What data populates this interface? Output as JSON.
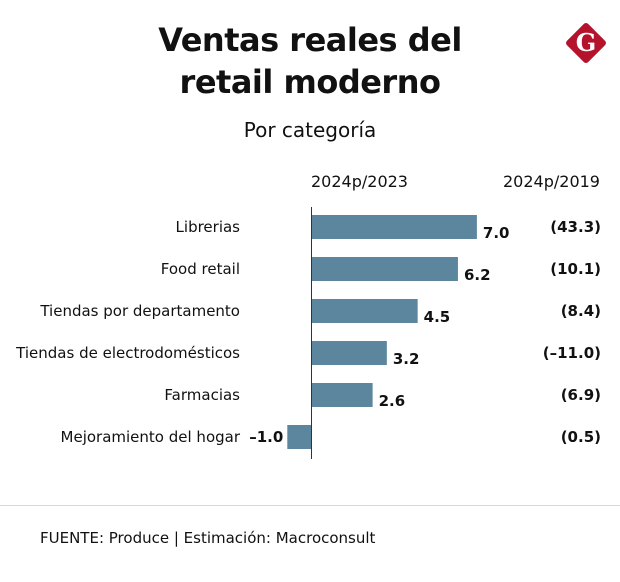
{
  "header": {
    "title_line1": "Ventas reales del",
    "title_line2": "retail moderno",
    "subtitle": "Por categoría",
    "logo_letter": "G",
    "logo_color": "#b5122c"
  },
  "columns": {
    "primary": "2024p/2023",
    "secondary": "2024p/2019"
  },
  "bar_color": "#5b869e",
  "footer": {
    "source": "FUENTE: Produce | Estimación: Macroconsult"
  },
  "chart_data": {
    "type": "bar",
    "orientation": "horizontal",
    "title": "Ventas reales del retail moderno",
    "subtitle": "Por categoría",
    "categories": [
      "Librerias",
      "Food retail",
      "Tiendas por departamento",
      "Tiendas de electrodomésticos",
      "Farmacias",
      "Mejoramiento del hogar"
    ],
    "series": [
      {
        "name": "2024p/2023",
        "values": [
          7.0,
          6.2,
          4.5,
          3.2,
          2.6,
          -1.0
        ],
        "labels": [
          "7.0",
          "6.2",
          "4.5",
          "3.2",
          "2.6",
          "-1.0"
        ]
      },
      {
        "name": "2024p/2019",
        "values": [
          43.3,
          10.1,
          8.4,
          -11.0,
          6.9,
          0.5
        ],
        "labels": [
          "(43.3)",
          "(10.1)",
          "(8.4)",
          "(-11.0)",
          "(6.9)",
          "(0.5)"
        ],
        "display": "text-column"
      }
    ],
    "xlabel": "",
    "ylabel": "",
    "xlim": [
      -1.0,
      7.0
    ],
    "grid": false,
    "legend": "none"
  }
}
